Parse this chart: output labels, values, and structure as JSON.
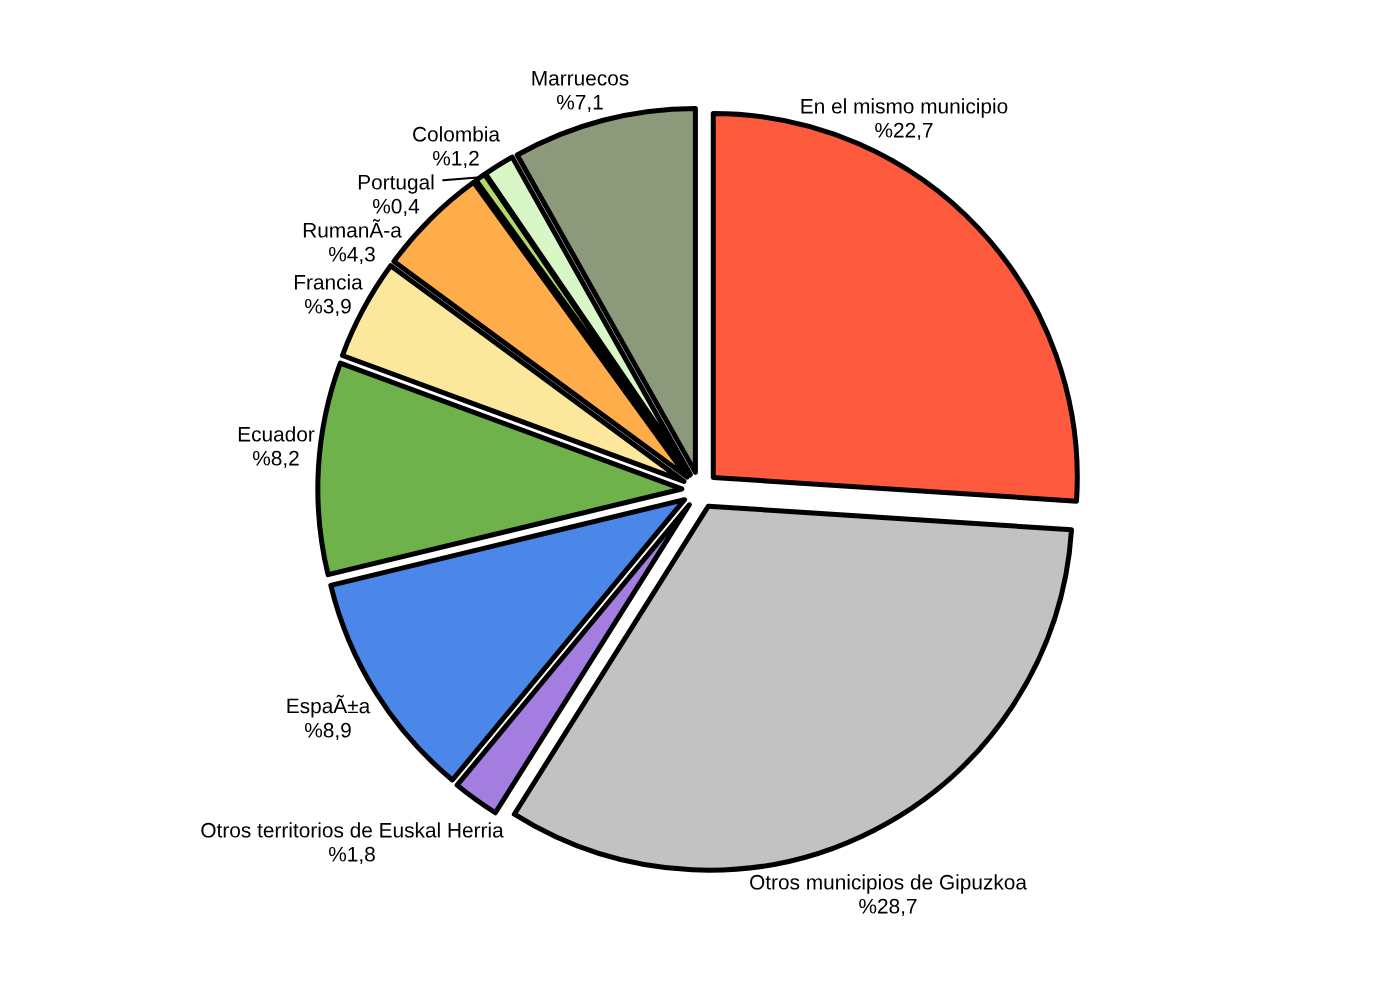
{
  "chart_data": {
    "type": "pie",
    "categories": [
      "En el mismo municipio",
      "Otros municipios de Gipuzkoa",
      "Otros territorios de Euskal Herria",
      "EspaÃ±a",
      "Ecuador",
      "Francia",
      "RumanÃ-a",
      "Portugal",
      "Colombia",
      "Marruecos"
    ],
    "values": [
      22.7,
      28.7,
      1.8,
      8.9,
      8.2,
      3.9,
      4.3,
      0.4,
      1.2,
      7.1
    ],
    "value_labels": [
      "%22,7",
      "%28,7",
      "%1,8",
      "%8,9",
      "%8,2",
      "%3,9",
      "%4,3",
      "%0,4",
      "%1,2",
      "%7,1"
    ],
    "colors": [
      "#fd5a3e",
      "#c2c2c2",
      "#a47de0",
      "#4a87e8",
      "#6fb24b",
      "#fce89c",
      "#ffad4a",
      "#b4d96a",
      "#d8f6c6",
      "#8c9a7b"
    ]
  }
}
